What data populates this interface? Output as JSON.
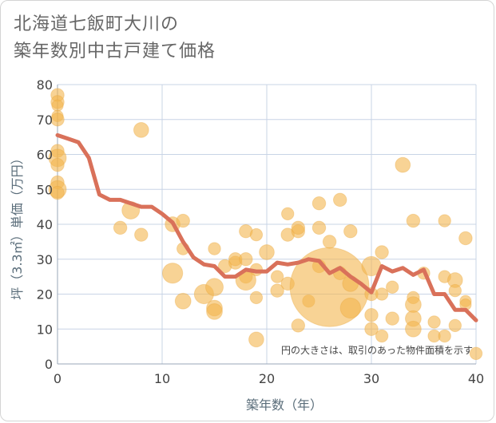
{
  "title_line1": "北海道七飯町大川の",
  "title_line2": "築年数別中古戸建て価格",
  "chart_data": {
    "type": "scatter",
    "xlabel": "築年数（年）",
    "ylabel": "坪（3.3㎡）単価（万円）",
    "note": "円の大きさは、取引のあった物件面積を示す",
    "xlim": [
      0,
      40
    ],
    "ylim": [
      0,
      80
    ],
    "xticks": [
      0,
      10,
      20,
      30,
      40
    ],
    "yticks": [
      0,
      10,
      20,
      30,
      40,
      50,
      60,
      70,
      80
    ],
    "grid": true,
    "colors": {
      "bubble": "#f3b54e",
      "line": "#d9715a",
      "grid": "#c8d4e6"
    },
    "bubbles": [
      {
        "x": 0,
        "y": 77,
        "s": 1.5
      },
      {
        "x": 0,
        "y": 75,
        "s": 1.5
      },
      {
        "x": 0,
        "y": 74,
        "s": 1.3
      },
      {
        "x": 0,
        "y": 71,
        "s": 1.3
      },
      {
        "x": 0,
        "y": 70,
        "s": 1.5
      },
      {
        "x": 0,
        "y": 61,
        "s": 1.5
      },
      {
        "x": 0,
        "y": 59,
        "s": 2
      },
      {
        "x": 0,
        "y": 57,
        "s": 1.5
      },
      {
        "x": 0,
        "y": 52,
        "s": 1.5
      },
      {
        "x": 0,
        "y": 50,
        "s": 2
      },
      {
        "x": 0,
        "y": 49,
        "s": 1.5
      },
      {
        "x": 7,
        "y": 44,
        "s": 2
      },
      {
        "x": 6,
        "y": 39,
        "s": 1.5
      },
      {
        "x": 8,
        "y": 37,
        "s": 1.5
      },
      {
        "x": 8,
        "y": 67,
        "s": 1.7
      },
      {
        "x": 11,
        "y": 40,
        "s": 1.7
      },
      {
        "x": 12,
        "y": 41,
        "s": 1.5
      },
      {
        "x": 11,
        "y": 26,
        "s": 2.3
      },
      {
        "x": 12,
        "y": 18,
        "s": 1.8
      },
      {
        "x": 12,
        "y": 33,
        "s": 1.4
      },
      {
        "x": 14,
        "y": 20,
        "s": 2.2
      },
      {
        "x": 15,
        "y": 22,
        "s": 2
      },
      {
        "x": 15,
        "y": 16,
        "s": 1.8
      },
      {
        "x": 15,
        "y": 15,
        "s": 1.8
      },
      {
        "x": 15,
        "y": 33,
        "s": 1.4
      },
      {
        "x": 16,
        "y": 28,
        "s": 1.5
      },
      {
        "x": 17,
        "y": 29,
        "s": 1.5
      },
      {
        "x": 17,
        "y": 30,
        "s": 1.5
      },
      {
        "x": 18,
        "y": 38,
        "s": 1.5
      },
      {
        "x": 18,
        "y": 30,
        "s": 1.5
      },
      {
        "x": 18,
        "y": 25,
        "s": 1.5
      },
      {
        "x": 18,
        "y": 24,
        "s": 2.3
      },
      {
        "x": 19,
        "y": 27,
        "s": 1.4
      },
      {
        "x": 19,
        "y": 37,
        "s": 1.4
      },
      {
        "x": 19,
        "y": 19,
        "s": 1.4
      },
      {
        "x": 19,
        "y": 7,
        "s": 1.7
      },
      {
        "x": 20,
        "y": 32,
        "s": 1.7
      },
      {
        "x": 21,
        "y": 21,
        "s": 1.5
      },
      {
        "x": 21,
        "y": 25,
        "s": 1.4
      },
      {
        "x": 22,
        "y": 43,
        "s": 1.4
      },
      {
        "x": 22,
        "y": 37,
        "s": 1.5
      },
      {
        "x": 22,
        "y": 23,
        "s": 1.5
      },
      {
        "x": 23,
        "y": 38,
        "s": 1.5
      },
      {
        "x": 23,
        "y": 39,
        "s": 1.5
      },
      {
        "x": 23,
        "y": 11,
        "s": 1.5
      },
      {
        "x": 24,
        "y": 18,
        "s": 1.4
      },
      {
        "x": 25,
        "y": 46,
        "s": 1.5
      },
      {
        "x": 25,
        "y": 39,
        "s": 1.5
      },
      {
        "x": 25,
        "y": 28,
        "s": 1.5
      },
      {
        "x": 26,
        "y": 22,
        "s": 9
      },
      {
        "x": 26,
        "y": 35,
        "s": 1.5
      },
      {
        "x": 27,
        "y": 47,
        "s": 1.5
      },
      {
        "x": 27,
        "y": 26,
        "s": 1.5
      },
      {
        "x": 28,
        "y": 38,
        "s": 1.5
      },
      {
        "x": 28,
        "y": 16,
        "s": 2.3
      },
      {
        "x": 28,
        "y": 23,
        "s": 1.8
      },
      {
        "x": 30,
        "y": 28,
        "s": 2.2
      },
      {
        "x": 30,
        "y": 20,
        "s": 1.5
      },
      {
        "x": 30,
        "y": 14,
        "s": 1.5
      },
      {
        "x": 30,
        "y": 10,
        "s": 1.5
      },
      {
        "x": 31,
        "y": 32,
        "s": 1.5
      },
      {
        "x": 31,
        "y": 20,
        "s": 1.4
      },
      {
        "x": 31,
        "y": 8,
        "s": 1.4
      },
      {
        "x": 32,
        "y": 22,
        "s": 1.4
      },
      {
        "x": 32,
        "y": 13,
        "s": 1.5
      },
      {
        "x": 33,
        "y": 57,
        "s": 1.7
      },
      {
        "x": 34,
        "y": 41,
        "s": 1.5
      },
      {
        "x": 34,
        "y": 19,
        "s": 1.4
      },
      {
        "x": 34,
        "y": 17,
        "s": 1.8
      },
      {
        "x": 34,
        "y": 13,
        "s": 1.8
      },
      {
        "x": 34,
        "y": 10,
        "s": 1.8
      },
      {
        "x": 35,
        "y": 26,
        "s": 1.4
      },
      {
        "x": 36,
        "y": 12,
        "s": 1.4
      },
      {
        "x": 36,
        "y": 8,
        "s": 1.4
      },
      {
        "x": 37,
        "y": 41,
        "s": 1.4
      },
      {
        "x": 37,
        "y": 25,
        "s": 1.4
      },
      {
        "x": 37,
        "y": 8,
        "s": 1.4
      },
      {
        "x": 38,
        "y": 24,
        "s": 1.7
      },
      {
        "x": 38,
        "y": 21,
        "s": 1.4
      },
      {
        "x": 38,
        "y": 11,
        "s": 1.4
      },
      {
        "x": 39,
        "y": 36,
        "s": 1.5
      },
      {
        "x": 39,
        "y": 18,
        "s": 1.3
      },
      {
        "x": 39,
        "y": 17,
        "s": 1.3
      },
      {
        "x": 40,
        "y": 3,
        "s": 1.4
      }
    ],
    "line": {
      "x": [
        0,
        1,
        2,
        3,
        4,
        5,
        6,
        7,
        8,
        9,
        10,
        11,
        12,
        13,
        14,
        15,
        16,
        17,
        18,
        19,
        20,
        21,
        22,
        23,
        24,
        25,
        26,
        27,
        28,
        29,
        30,
        31,
        32,
        33,
        34,
        35,
        36,
        37,
        38,
        39,
        40
      ],
      "y": [
        65.5,
        64.5,
        63.5,
        59,
        48.5,
        47,
        47,
        46,
        45,
        45,
        43,
        40.5,
        35,
        30.5,
        28.5,
        28,
        25,
        25,
        27,
        26.5,
        26.5,
        29,
        28.5,
        29,
        30,
        29.5,
        26,
        27.5,
        25,
        23,
        20.5,
        28,
        26.5,
        27.5,
        25.5,
        27,
        20,
        20,
        15.5,
        15.5,
        12.5
      ]
    }
  }
}
